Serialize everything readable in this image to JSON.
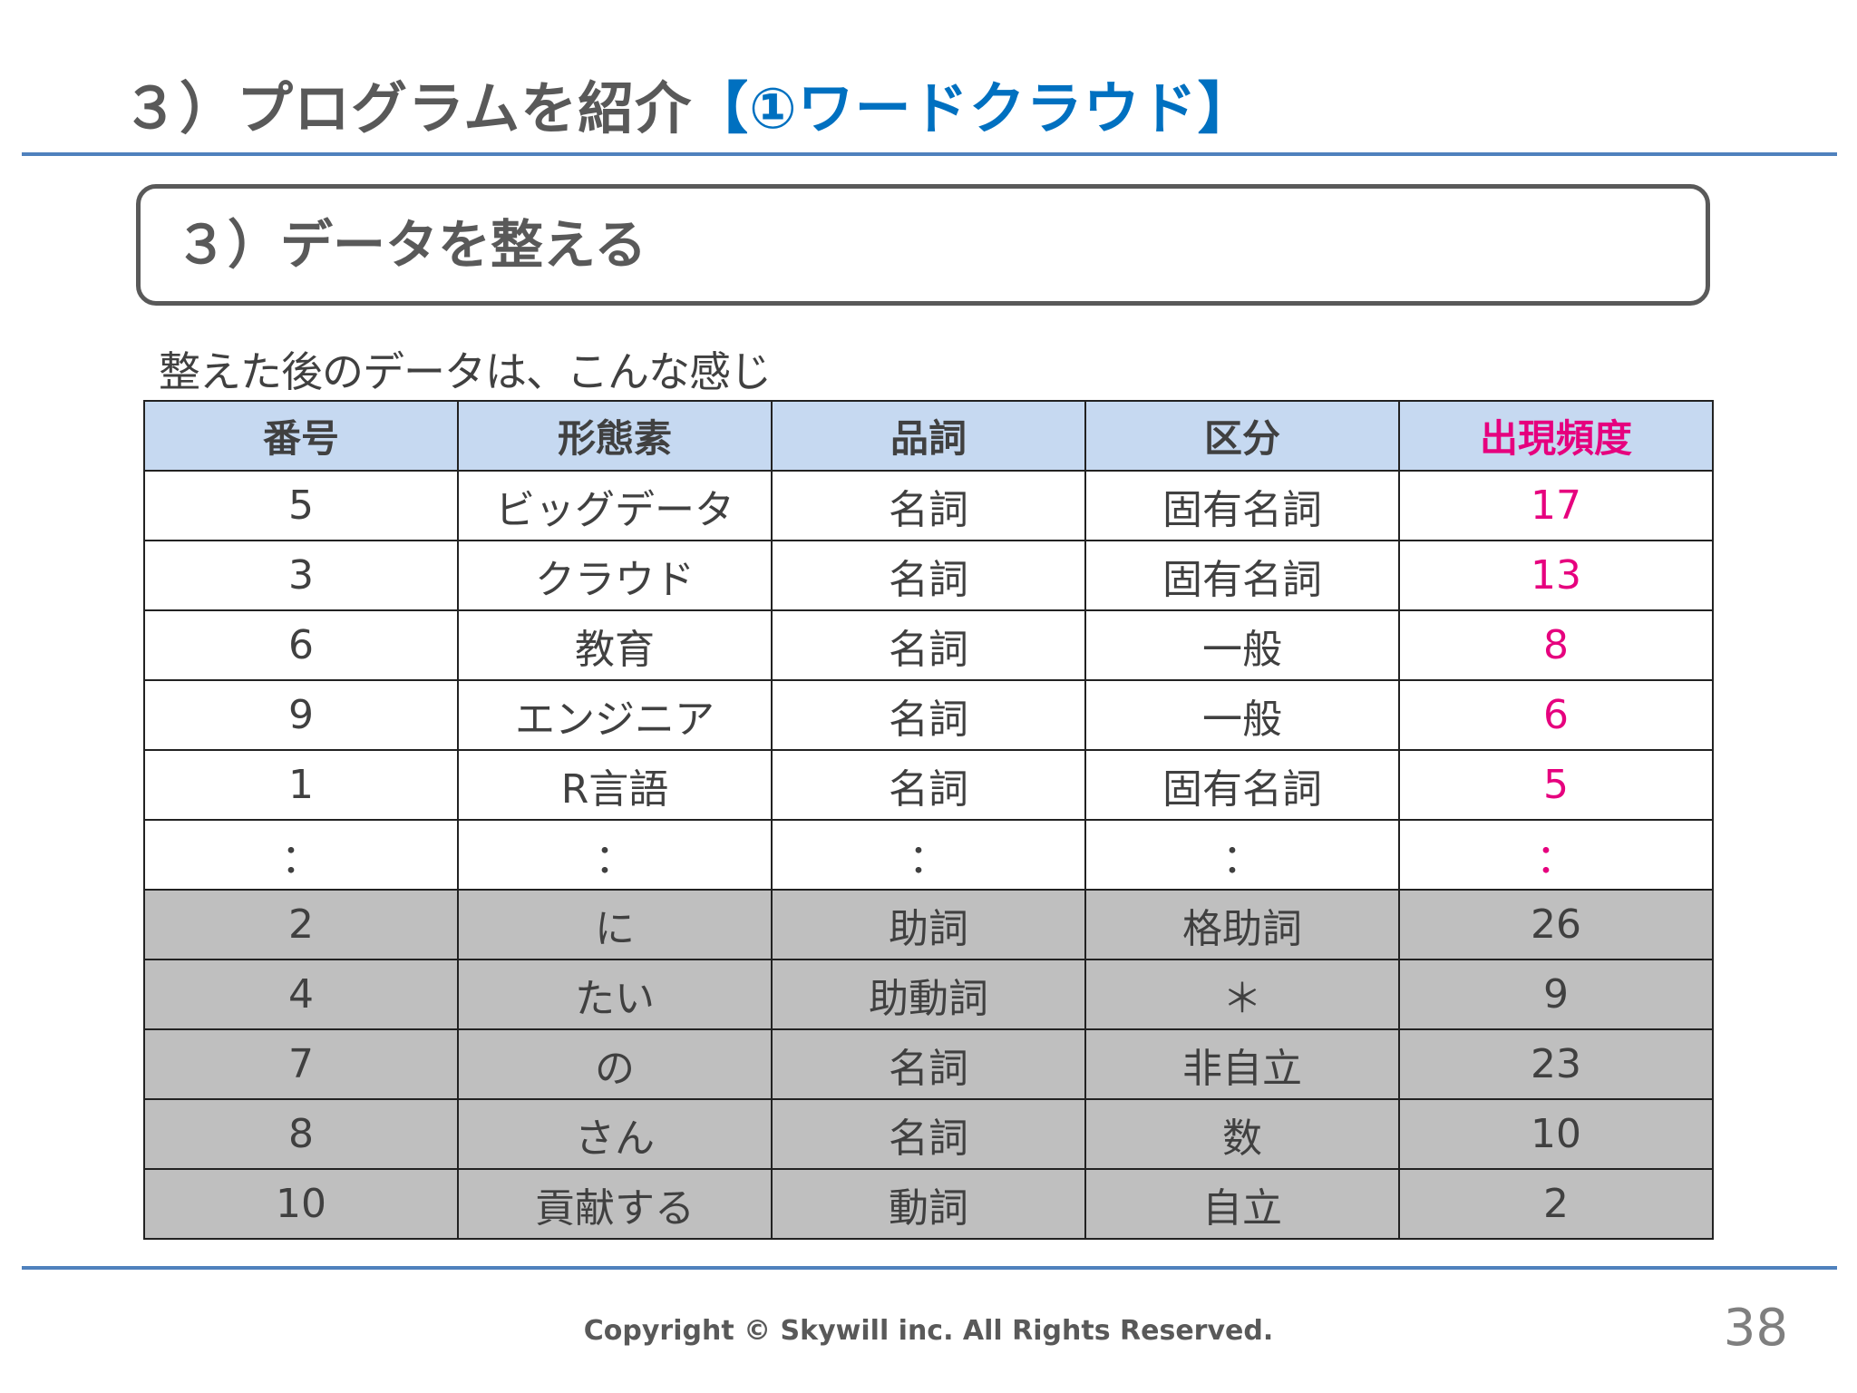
{
  "slide": {
    "title_main": "３）プログラムを紹介",
    "title_accent": "【①ワードクラウド】",
    "section_title": "３）データを整える",
    "intro": "整えた後のデータは、こんな感じ",
    "footer": "Copyright © Skywill inc. All Rights Reserved.",
    "page_number": "38"
  },
  "colors": {
    "accent_blue": "#0070c0",
    "rule_blue": "#4f81bd",
    "header_fill": "#c6d9f1",
    "frequency_magenta": "#e6007e",
    "grey_row_fill": "#bfbfbf"
  },
  "table": {
    "headers": [
      "番号",
      "形態素",
      "品詞",
      "区分",
      "出現頻度"
    ],
    "rows": [
      {
        "no": "5",
        "morpheme": "ビッグデータ",
        "pos": "名詞",
        "category": "固有名詞",
        "freq": "17",
        "grey": false
      },
      {
        "no": "3",
        "morpheme": "クラウド",
        "pos": "名詞",
        "category": "固有名詞",
        "freq": "13",
        "grey": false
      },
      {
        "no": "6",
        "morpheme": "教育",
        "pos": "名詞",
        "category": "一般",
        "freq": "8",
        "grey": false
      },
      {
        "no": "9",
        "morpheme": "エンジニア",
        "pos": "名詞",
        "category": "一般",
        "freq": "6",
        "grey": false
      },
      {
        "no": "1",
        "morpheme": "R言語",
        "pos": "名詞",
        "category": "固有名詞",
        "freq": "5",
        "grey": false
      },
      {
        "no": "：",
        "morpheme": "：",
        "pos": "：",
        "category": "：",
        "freq": "：",
        "grey": false
      },
      {
        "no": "2",
        "morpheme": "に",
        "pos": "助詞",
        "category": "格助詞",
        "freq": "26",
        "grey": true
      },
      {
        "no": "4",
        "morpheme": "たい",
        "pos": "助動詞",
        "category": "＊",
        "freq": "9",
        "grey": true
      },
      {
        "no": "7",
        "morpheme": "の",
        "pos": "名詞",
        "category": "非自立",
        "freq": "23",
        "grey": true
      },
      {
        "no": "8",
        "morpheme": "さん",
        "pos": "名詞",
        "category": "数",
        "freq": "10",
        "grey": true
      },
      {
        "no": "10",
        "morpheme": "貢献する",
        "pos": "動詞",
        "category": "自立",
        "freq": "2",
        "grey": true
      }
    ]
  }
}
